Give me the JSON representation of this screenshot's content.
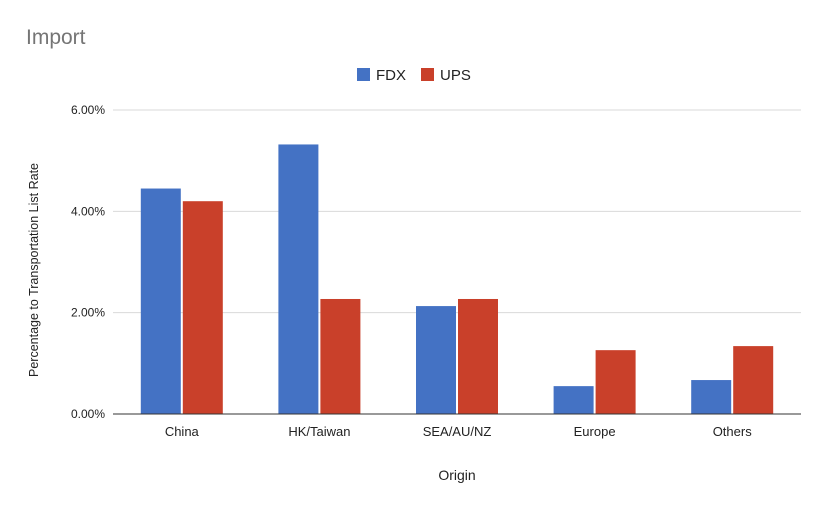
{
  "chart_data": {
    "type": "bar",
    "title": "Import",
    "xlabel": "Origin",
    "ylabel": "Percentage to Transportation List Rate",
    "categories": [
      "China",
      "HK/Taiwan",
      "SEA/AU/NZ",
      "Europe",
      "Others"
    ],
    "series": [
      {
        "name": "FDX",
        "color": "#4472C4",
        "values": [
          4.45,
          5.32,
          2.13,
          0.55,
          0.67
        ]
      },
      {
        "name": "UPS",
        "color": "#C9402A",
        "values": [
          4.2,
          2.27,
          2.27,
          1.26,
          1.34
        ]
      }
    ],
    "ylim": [
      0,
      6
    ],
    "yticks": [
      0,
      2,
      4,
      6
    ],
    "ytick_labels": [
      "0.00%",
      "2.00%",
      "4.00%",
      "6.00%"
    ],
    "grid": true,
    "legend_position": "top-center"
  }
}
